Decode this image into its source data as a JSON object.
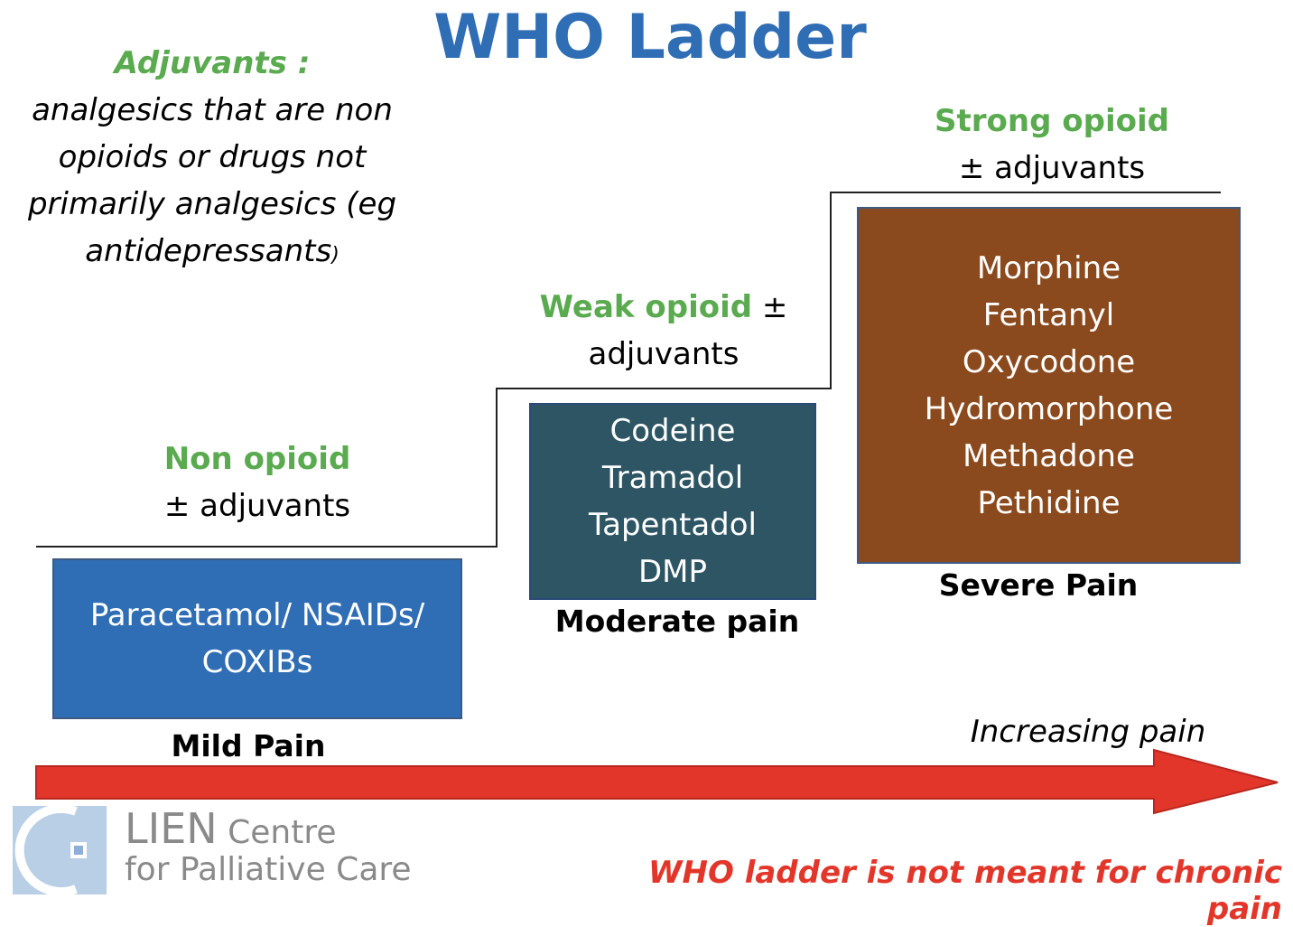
{
  "title": "WHO Ladder",
  "adjuvants": {
    "heading": "Adjuvants :",
    "line1": "analgesics that are non",
    "line2": "opioids or drugs not",
    "line3": "primarily analgesics (eg",
    "line4": "antidepressants",
    "paren": ")"
  },
  "steps": {
    "mild": {
      "heading": "Non opioid",
      "sub": "± adjuvants",
      "drugs": [
        "Paracetamol/ NSAIDs/",
        "COXIBs"
      ],
      "pain": "Mild Pain"
    },
    "moderate": {
      "heading": "Weak opioid",
      "heading_suffix": " ±",
      "sub": "adjuvants",
      "drugs": [
        "Codeine",
        "Tramadol",
        "Tapentadol",
        "DMP"
      ],
      "pain": "Moderate pain"
    },
    "severe": {
      "heading": "Strong opioid",
      "sub": "± adjuvants",
      "drugs": [
        "Morphine",
        "Fentanyl",
        "Oxycodone",
        "Hydromorphone",
        "Methadone",
        "Pethidine"
      ],
      "pain": "Severe Pain"
    }
  },
  "arrow": {
    "label": "Increasing pain",
    "color": "#e3362a"
  },
  "warning": "WHO ladder is not meant for chronic pain",
  "logo": {
    "line1_big": "LIEN",
    "line1_small": " Centre",
    "line2": "for Palliative Care"
  },
  "colors": {
    "title": "#2f6db5",
    "heading_green": "#5aaa4f",
    "mild_box": "#2f6db5",
    "moderate_box": "#2d5563",
    "severe_box": "#8b4a1e",
    "warning": "#e3362a"
  }
}
